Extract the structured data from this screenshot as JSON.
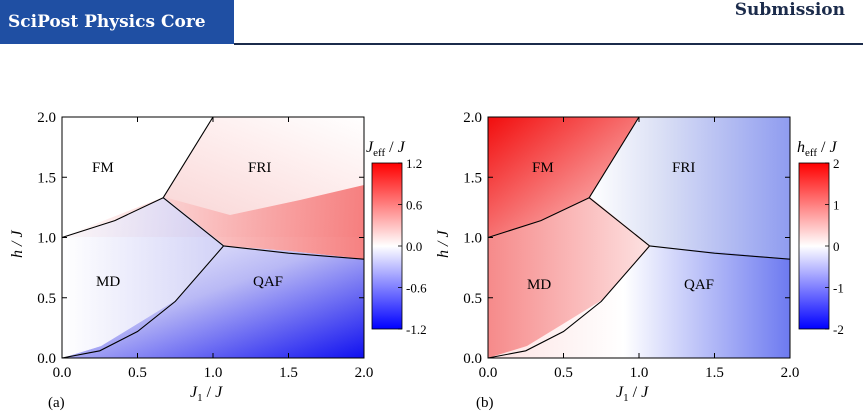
{
  "header": {
    "journal": "SciPost Physics Core",
    "status": "Submission"
  },
  "chart_data": [
    {
      "type": "heatmap",
      "panel": "(a)",
      "xlabel": "J1 / J",
      "ylabel": "h / J",
      "xlim": [
        0.0,
        2.0
      ],
      "ylim": [
        0.0,
        2.0
      ],
      "xticks": [
        "0.0",
        "0.5",
        "1.0",
        "1.5",
        "2.0"
      ],
      "yticks": [
        "0.0",
        "0.5",
        "1.0",
        "1.5",
        "2.0"
      ],
      "colorbar": {
        "label": "Jeff / J",
        "range": [
          -1.2,
          1.2
        ],
        "ticks": [
          "1.2",
          "0.6",
          "0.0",
          "-0.6",
          "-1.2"
        ],
        "colors": {
          "max": "#ff0000",
          "mid": "#ffffff",
          "min": "#0000ff"
        }
      },
      "phases": [
        "FM",
        "FRI",
        "MD",
        "QAF"
      ],
      "phase_boundaries": [
        {
          "from": "FM-MD",
          "points": [
            [
              0.0,
              1.0
            ],
            [
              0.35,
              1.14
            ],
            [
              0.67,
              1.33
            ]
          ]
        },
        {
          "from": "FM-FRI",
          "points": [
            [
              0.67,
              1.33
            ],
            [
              1.0,
              2.0
            ]
          ]
        },
        {
          "from": "FRI-MD",
          "points": [
            [
              0.67,
              1.33
            ],
            [
              1.07,
              0.93
            ]
          ]
        },
        {
          "from": "FRI-QAF",
          "points": [
            [
              1.07,
              0.93
            ],
            [
              1.5,
              0.87
            ],
            [
              2.0,
              0.82
            ]
          ]
        },
        {
          "from": "MD-QAF",
          "points": [
            [
              0.0,
              0.0
            ],
            [
              0.25,
              0.06
            ],
            [
              0.5,
              0.22
            ],
            [
              0.75,
              0.47
            ],
            [
              1.07,
              0.93
            ]
          ]
        }
      ]
    },
    {
      "type": "heatmap",
      "panel": "(b)",
      "xlabel": "J1 / J",
      "ylabel": "h / J",
      "xlim": [
        0.0,
        2.0
      ],
      "ylim": [
        0.0,
        2.0
      ],
      "xticks": [
        "0.0",
        "0.5",
        "1.0",
        "1.5",
        "2.0"
      ],
      "yticks": [
        "0.0",
        "0.5",
        "1.0",
        "1.5",
        "2.0"
      ],
      "colorbar": {
        "label": "heff / J",
        "range": [
          -2,
          2
        ],
        "ticks": [
          "2",
          "1",
          "0",
          "-1",
          "-2"
        ],
        "colors": {
          "max": "#ff0000",
          "mid": "#ffffff",
          "min": "#0000ff"
        }
      },
      "phases": [
        "FM",
        "FRI",
        "MD",
        "QAF"
      ],
      "phase_boundaries": [
        {
          "from": "FM-MD",
          "points": [
            [
              0.0,
              1.0
            ],
            [
              0.35,
              1.14
            ],
            [
              0.67,
              1.33
            ]
          ]
        },
        {
          "from": "FM-FRI",
          "points": [
            [
              0.67,
              1.33
            ],
            [
              1.0,
              2.0
            ]
          ]
        },
        {
          "from": "FRI-MD",
          "points": [
            [
              0.67,
              1.33
            ],
            [
              1.07,
              0.93
            ]
          ]
        },
        {
          "from": "FRI-QAF",
          "points": [
            [
              1.07,
              0.93
            ],
            [
              1.5,
              0.87
            ],
            [
              2.0,
              0.82
            ]
          ]
        },
        {
          "from": "MD-QAF",
          "points": [
            [
              0.0,
              0.0
            ],
            [
              0.25,
              0.06
            ],
            [
              0.5,
              0.22
            ],
            [
              0.75,
              0.47
            ],
            [
              1.07,
              0.93
            ]
          ]
        }
      ]
    }
  ]
}
